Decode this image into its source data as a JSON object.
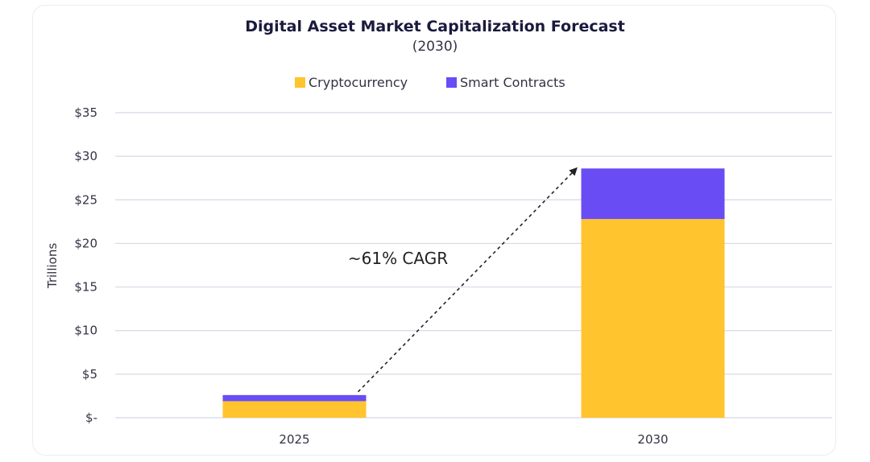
{
  "chart_data": {
    "type": "bar",
    "stacked": true,
    "title": "Digital Asset Market Capitalization Forecast",
    "subtitle": "(2030)",
    "ylabel": "Trillions",
    "xlabel": "",
    "categories": [
      "2025",
      "2030"
    ],
    "series": [
      {
        "name": "Cryptocurrency",
        "color": "#FFC42E",
        "values": [
          1.9,
          22.8
        ]
      },
      {
        "name": "Smart Contracts",
        "color": "#6A4CF5",
        "values": [
          0.7,
          5.8
        ]
      }
    ],
    "ylim": [
      0,
      35
    ],
    "yticks": [
      0,
      5,
      10,
      15,
      20,
      25,
      30,
      35
    ],
    "ytick_labels": [
      "$-",
      "$5",
      "$10",
      "$15",
      "$20",
      "$25",
      "$30",
      "$35"
    ],
    "grid": true,
    "legend_position": "top-center",
    "annotation": {
      "text": "~61% CAGR",
      "arrow_from_category": "2025",
      "arrow_to_category": "2030"
    },
    "gridline_color": "#d8d8e6",
    "text_color": "#333344"
  }
}
